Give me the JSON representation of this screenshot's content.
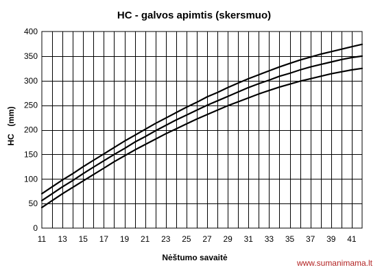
{
  "chart_data": {
    "type": "line",
    "title": "HC - galvos apimtis (skersmuo)",
    "xlabel": "Nėštumo savaitė",
    "ylabel_main": "HC",
    "ylabel_unit": "(mm)",
    "xlim": [
      11,
      42
    ],
    "ylim": [
      0,
      400
    ],
    "x_ticks": [
      11,
      13,
      15,
      17,
      19,
      21,
      23,
      25,
      27,
      29,
      31,
      33,
      35,
      37,
      39,
      41
    ],
    "y_ticks": [
      0,
      50,
      100,
      150,
      200,
      250,
      300,
      350,
      400
    ],
    "grid": true,
    "x": [
      11,
      12,
      13,
      14,
      15,
      16,
      17,
      18,
      19,
      20,
      21,
      22,
      23,
      24,
      25,
      26,
      27,
      28,
      29,
      30,
      31,
      32,
      33,
      34,
      35,
      36,
      37,
      38,
      39,
      40,
      41,
      42
    ],
    "series": [
      {
        "values": [
          70,
          84,
          98,
          111,
          125,
          138,
          151,
          164,
          177,
          189,
          201,
          213,
          224,
          235,
          246,
          256,
          267,
          276,
          286,
          295,
          304,
          312,
          320,
          328,
          335,
          342,
          348,
          354,
          359,
          364,
          369,
          374
        ]
      },
      {
        "values": [
          56,
          70,
          84,
          97,
          111,
          124,
          137,
          150,
          162,
          175,
          186,
          198,
          209,
          220,
          230,
          240,
          250,
          259,
          268,
          277,
          286,
          294,
          301,
          309,
          315,
          322,
          328,
          333,
          338,
          343,
          347,
          350
        ]
      },
      {
        "values": [
          42,
          56,
          70,
          83,
          96,
          109,
          122,
          135,
          147,
          159,
          170,
          181,
          192,
          202,
          212,
          222,
          231,
          240,
          249,
          257,
          265,
          273,
          280,
          287,
          293,
          299,
          304,
          309,
          314,
          318,
          322,
          325
        ]
      }
    ]
  },
  "watermark": "www.sumanimama.lt"
}
